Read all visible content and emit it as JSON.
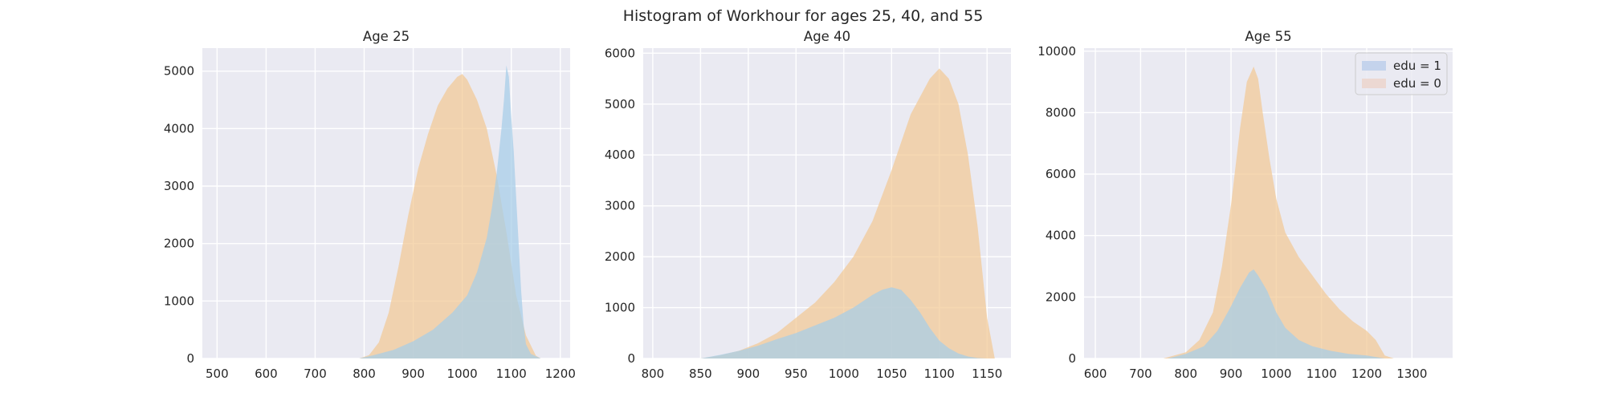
{
  "figure": {
    "title": "Histogram of Workhour for ages 25, 40, and 55"
  },
  "colors": {
    "background": "#ffffff",
    "plot_bg": "#eaeaf2",
    "grid": "#ffffff",
    "edu1_fill": "#a6cde8",
    "edu0_fill": "#f2c994",
    "legend_edu1_swatch": "#c4d3ec",
    "legend_edu0_swatch": "#ecd8d2",
    "text": "#262626"
  },
  "legend": {
    "placement": "upper-right (Age 55 panel)",
    "entries": [
      {
        "label": "edu = 1",
        "color_key": "legend_edu1_swatch"
      },
      {
        "label": "edu = 0",
        "color_key": "legend_edu0_swatch"
      }
    ]
  },
  "chart_data": [
    {
      "type": "area",
      "title": "Age 25",
      "xlabel": "",
      "ylabel": "",
      "xlim": [
        470,
        1220
      ],
      "ylim": [
        0,
        5400
      ],
      "xticks": [
        500,
        600,
        700,
        800,
        900,
        1000,
        1100,
        1200
      ],
      "yticks": [
        0,
        1000,
        2000,
        3000,
        4000,
        5000
      ],
      "grid": true,
      "legend": false,
      "series": [
        {
          "name": "edu = 0",
          "color_key": "edu0_fill",
          "x": [
            790,
            810,
            830,
            850,
            870,
            890,
            910,
            930,
            950,
            970,
            990,
            1000,
            1010,
            1030,
            1050,
            1070,
            1090,
            1110,
            1130,
            1150,
            1160
          ],
          "y": [
            0,
            60,
            280,
            800,
            1600,
            2500,
            3300,
            3900,
            4400,
            4700,
            4900,
            4950,
            4850,
            4500,
            4000,
            3200,
            2200,
            1100,
            400,
            50,
            0
          ]
        },
        {
          "name": "edu = 1",
          "color_key": "edu1_fill",
          "x": [
            790,
            820,
            860,
            900,
            940,
            980,
            1010,
            1030,
            1050,
            1060,
            1070,
            1080,
            1085,
            1090,
            1095,
            1100,
            1105,
            1110,
            1115,
            1120,
            1125,
            1130,
            1140,
            1160
          ],
          "y": [
            0,
            60,
            150,
            300,
            500,
            800,
            1100,
            1500,
            2100,
            2600,
            3200,
            4000,
            4500,
            5100,
            4900,
            4200,
            3600,
            2800,
            2000,
            1200,
            600,
            250,
            80,
            0
          ]
        }
      ]
    },
    {
      "type": "area",
      "title": "Age 40",
      "xlabel": "",
      "ylabel": "",
      "xlim": [
        790,
        1175
      ],
      "ylim": [
        0,
        6100
      ],
      "xticks": [
        800,
        850,
        900,
        950,
        1000,
        1050,
        1100,
        1150
      ],
      "yticks": [
        0,
        1000,
        2000,
        3000,
        4000,
        5000,
        6000
      ],
      "grid": true,
      "legend": false,
      "series": [
        {
          "name": "edu = 0",
          "color_key": "edu0_fill",
          "x": [
            850,
            870,
            890,
            910,
            930,
            950,
            970,
            990,
            1010,
            1030,
            1050,
            1070,
            1090,
            1100,
            1110,
            1120,
            1130,
            1140,
            1150,
            1158
          ],
          "y": [
            0,
            60,
            150,
            300,
            500,
            800,
            1100,
            1500,
            2000,
            2700,
            3700,
            4800,
            5500,
            5700,
            5500,
            5000,
            4000,
            2600,
            800,
            0
          ]
        },
        {
          "name": "edu = 1",
          "color_key": "edu1_fill",
          "x": [
            850,
            870,
            890,
            910,
            930,
            950,
            970,
            990,
            1010,
            1030,
            1040,
            1050,
            1060,
            1070,
            1080,
            1090,
            1100,
            1110,
            1120,
            1130,
            1140,
            1150
          ],
          "y": [
            0,
            70,
            150,
            250,
            380,
            500,
            650,
            800,
            1000,
            1250,
            1350,
            1400,
            1350,
            1150,
            900,
            600,
            350,
            200,
            100,
            40,
            10,
            0
          ]
        }
      ]
    },
    {
      "type": "area",
      "title": "Age 55",
      "xlabel": "",
      "ylabel": "",
      "xlim": [
        575,
        1390
      ],
      "ylim": [
        0,
        10100
      ],
      "xticks": [
        600,
        700,
        800,
        900,
        1000,
        1100,
        1200,
        1300
      ],
      "yticks": [
        0,
        2000,
        4000,
        6000,
        8000,
        10000
      ],
      "grid": true,
      "legend": true,
      "series": [
        {
          "name": "edu = 0",
          "color_key": "edu0_fill",
          "x": [
            750,
            800,
            830,
            860,
            880,
            900,
            920,
            935,
            950,
            960,
            970,
            985,
            1000,
            1020,
            1050,
            1080,
            1110,
            1140,
            1170,
            1200,
            1220,
            1240,
            1260
          ],
          "y": [
            0,
            200,
            600,
            1500,
            3000,
            5000,
            7500,
            9000,
            9500,
            9100,
            8000,
            6500,
            5200,
            4100,
            3300,
            2700,
            2100,
            1600,
            1200,
            900,
            600,
            100,
            0
          ]
        },
        {
          "name": "edu = 1",
          "color_key": "edu1_fill",
          "x": [
            760,
            800,
            840,
            870,
            900,
            920,
            940,
            950,
            960,
            980,
            1000,
            1020,
            1050,
            1080,
            1120,
            1160,
            1200,
            1240
          ],
          "y": [
            0,
            150,
            400,
            900,
            1700,
            2300,
            2800,
            2900,
            2700,
            2200,
            1500,
            1000,
            600,
            400,
            250,
            150,
            100,
            0
          ]
        }
      ]
    }
  ]
}
